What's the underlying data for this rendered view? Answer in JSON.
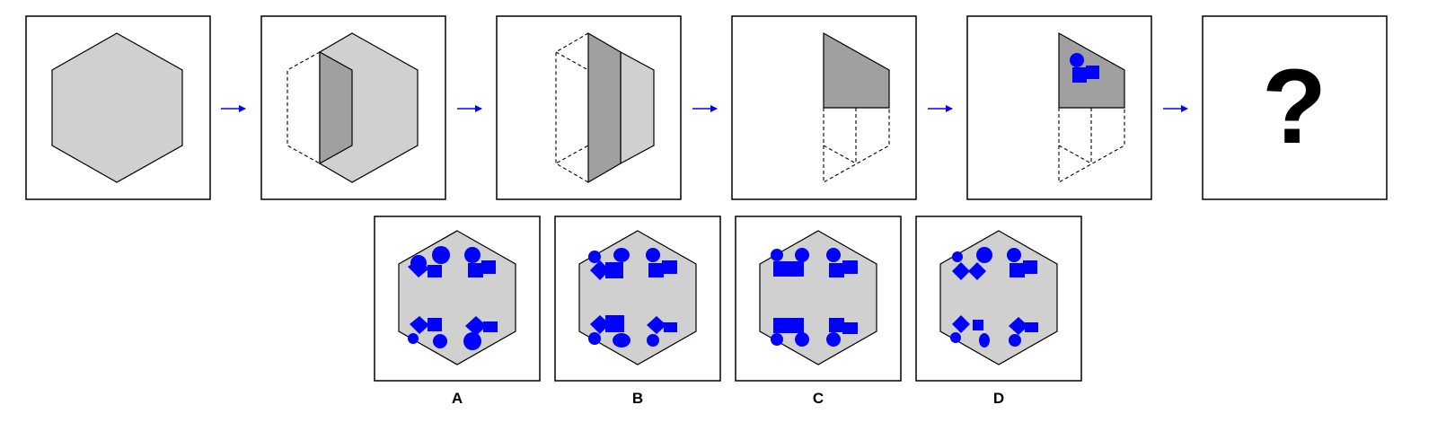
{
  "sequence": {
    "question_mark": "?"
  },
  "options": [
    {
      "label": "A"
    },
    {
      "label": "B"
    },
    {
      "label": "C"
    },
    {
      "label": "D"
    }
  ],
  "colors": {
    "hexagon_fill": "#d0d0d0",
    "fold_fill": "#a0a0a0",
    "shape_fill": "#0000ff",
    "arrow": "#0000ff",
    "outline": "#000000"
  }
}
